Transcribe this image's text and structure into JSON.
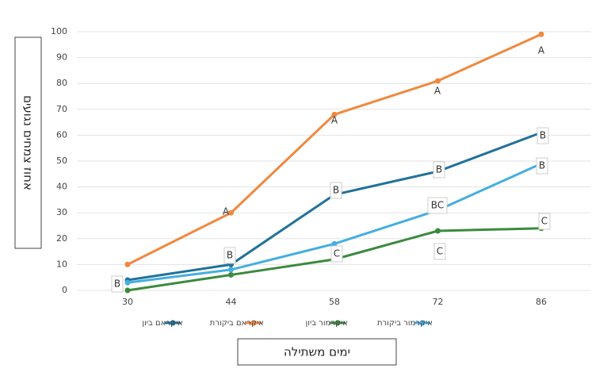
{
  "chart_data": {
    "type": "line",
    "x_label": "ימים משתילה",
    "y_label": "אחוז צמחים נגועים",
    "categories": [
      "30",
      "44",
      "58",
      "72",
      "86"
    ],
    "series": [
      {
        "name": "איקראם ביון",
        "color": "#21729a",
        "values": [
          4,
          10,
          37,
          46,
          61
        ]
      },
      {
        "name": "איקראם ביקורת",
        "color": "#f0883e",
        "values": [
          10,
          30,
          68,
          81,
          99
        ]
      },
      {
        "name": "איקרמור ביון",
        "color": "#3b8a3e",
        "values": [
          0,
          6,
          12,
          23,
          24
        ]
      },
      {
        "name": "איקרמור ביקורת",
        "color": "#44aee0",
        "values": [
          3,
          8,
          18,
          31,
          49
        ]
      }
    ],
    "annotations": [
      "B",
      "A",
      "B",
      "A",
      "B",
      "C",
      "A",
      "B",
      "BC",
      "C",
      "A",
      "B",
      "B",
      "C"
    ],
    "ylim": [
      0,
      100
    ],
    "yticks": [
      0,
      10,
      20,
      30,
      40,
      50,
      60,
      70,
      80,
      90,
      100
    ],
    "grid": true,
    "legend": "bottom"
  }
}
